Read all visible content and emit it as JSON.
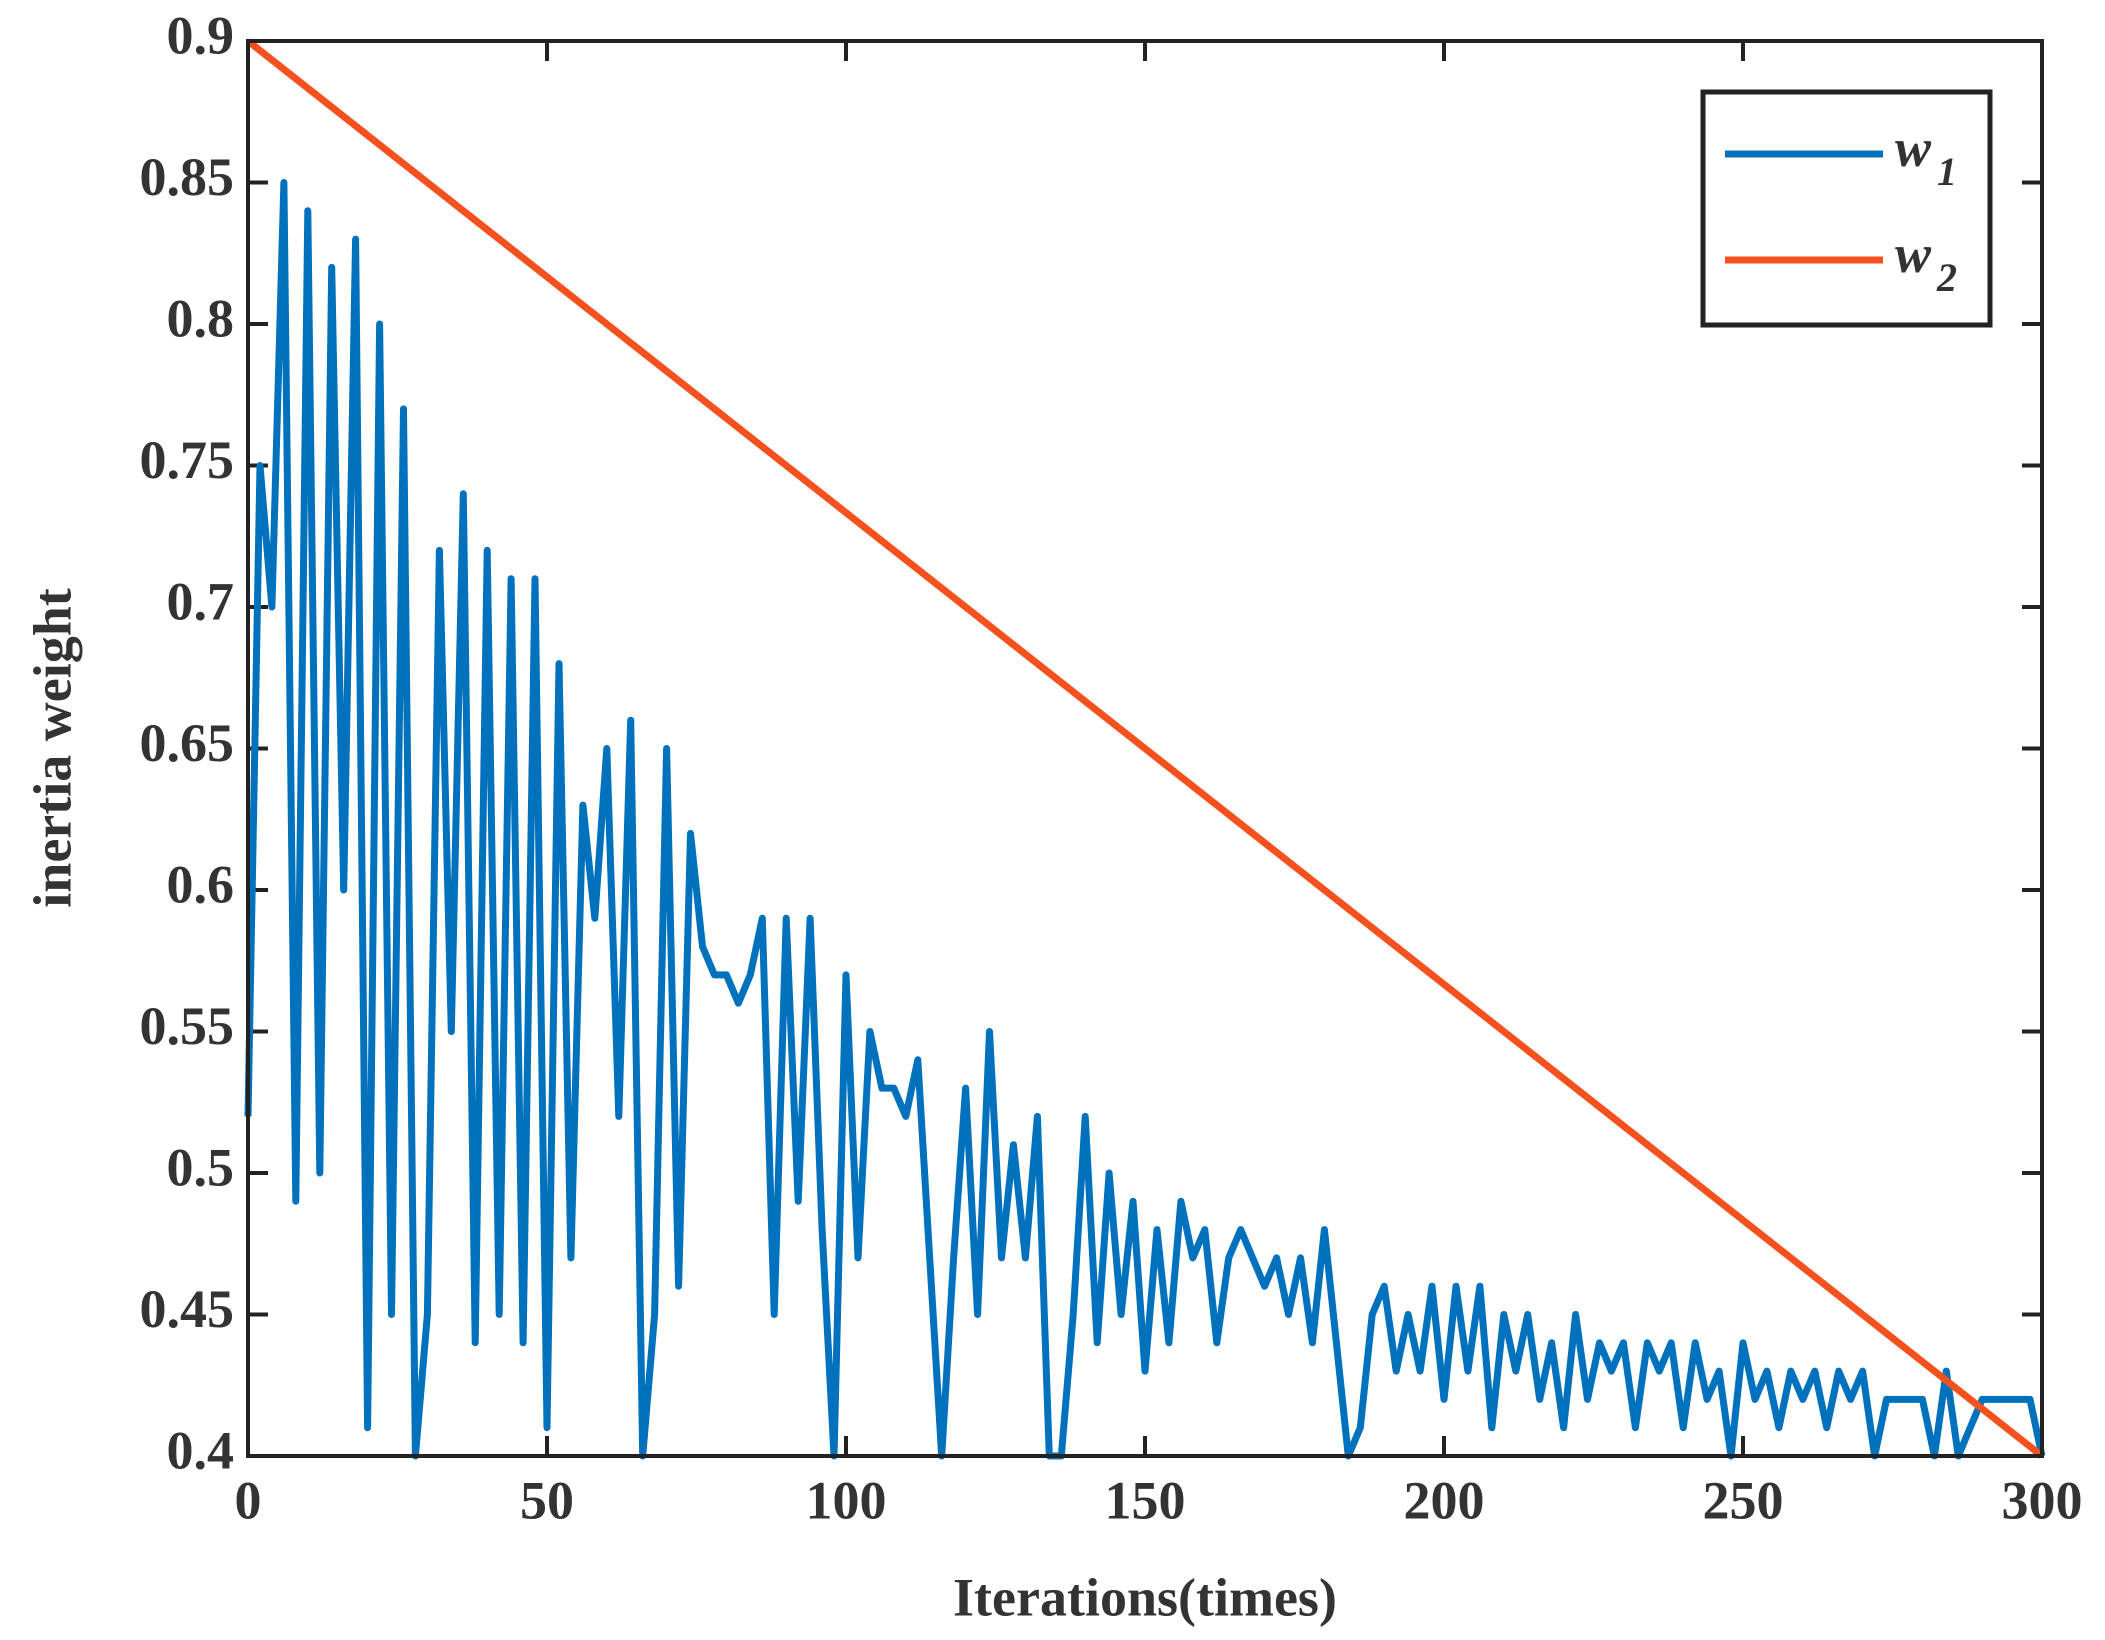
{
  "chart_data": {
    "type": "line",
    "xlabel": "Iterations(times)",
    "ylabel": "inertia weight",
    "xlim": [
      0,
      300
    ],
    "xticks": [
      0,
      50,
      100,
      150,
      200,
      250,
      300
    ],
    "ylim": [
      0.4,
      0.9
    ],
    "yticks": [
      0.4,
      0.45,
      0.5,
      0.55,
      0.6,
      0.65,
      0.7,
      0.75,
      0.8,
      0.85,
      0.9
    ],
    "legend": "upper right",
    "series": [
      {
        "name": "w1",
        "color": "#0072bd",
        "x": [
          0,
          2,
          4,
          6,
          8,
          10,
          12,
          14,
          16,
          18,
          20,
          22,
          24,
          26,
          28,
          30,
          32,
          34,
          36,
          38,
          40,
          42,
          44,
          46,
          48,
          50,
          52,
          54,
          56,
          58,
          60,
          62,
          64,
          66,
          68,
          70,
          72,
          74,
          76,
          78,
          80,
          82,
          84,
          86,
          88,
          90,
          92,
          94,
          96,
          98,
          100,
          102,
          104,
          106,
          108,
          110,
          112,
          114,
          116,
          118,
          120,
          122,
          124,
          126,
          128,
          130,
          132,
          134,
          136,
          138,
          140,
          142,
          144,
          146,
          148,
          150,
          152,
          154,
          156,
          158,
          160,
          162,
          164,
          166,
          168,
          170,
          172,
          174,
          176,
          178,
          180,
          182,
          184,
          186,
          188,
          190,
          192,
          194,
          196,
          198,
          200,
          202,
          204,
          206,
          208,
          210,
          212,
          214,
          216,
          218,
          220,
          222,
          224,
          226,
          228,
          230,
          232,
          234,
          236,
          238,
          240,
          242,
          244,
          246,
          248,
          250,
          252,
          254,
          256,
          258,
          260,
          262,
          264,
          266,
          268,
          270,
          272,
          274,
          276,
          278,
          280,
          282,
          284,
          286,
          288,
          290,
          292,
          294,
          296,
          298,
          300
        ],
        "values": [
          0.52,
          0.75,
          0.7,
          0.85,
          0.49,
          0.84,
          0.5,
          0.82,
          0.6,
          0.83,
          0.41,
          0.8,
          0.45,
          0.77,
          0.4,
          0.45,
          0.72,
          0.55,
          0.74,
          0.44,
          0.72,
          0.45,
          0.71,
          0.44,
          0.71,
          0.41,
          0.68,
          0.47,
          0.63,
          0.59,
          0.65,
          0.52,
          0.66,
          0.4,
          0.45,
          0.65,
          0.46,
          0.62,
          0.58,
          0.57,
          0.57,
          0.56,
          0.57,
          0.59,
          0.45,
          0.59,
          0.49,
          0.59,
          0.48,
          0.4,
          0.57,
          0.47,
          0.55,
          0.53,
          0.53,
          0.52,
          0.54,
          0.47,
          0.4,
          0.47,
          0.53,
          0.45,
          0.55,
          0.47,
          0.51,
          0.47,
          0.52,
          0.4,
          0.4,
          0.45,
          0.52,
          0.44,
          0.5,
          0.45,
          0.49,
          0.43,
          0.48,
          0.44,
          0.49,
          0.47,
          0.48,
          0.44,
          0.47,
          0.48,
          0.47,
          0.46,
          0.47,
          0.45,
          0.47,
          0.44,
          0.48,
          0.44,
          0.4,
          0.41,
          0.45,
          0.46,
          0.43,
          0.45,
          0.43,
          0.46,
          0.42,
          0.46,
          0.43,
          0.46,
          0.41,
          0.45,
          0.43,
          0.45,
          0.42,
          0.44,
          0.41,
          0.45,
          0.42,
          0.44,
          0.43,
          0.44,
          0.41,
          0.44,
          0.43,
          0.44,
          0.41,
          0.44,
          0.42,
          0.43,
          0.4,
          0.44,
          0.42,
          0.43,
          0.41,
          0.43,
          0.42,
          0.43,
          0.41,
          0.43,
          0.42,
          0.43,
          0.4,
          0.42,
          0.42,
          0.42,
          0.42,
          0.4,
          0.43,
          0.4,
          0.41,
          0.42,
          0.42,
          0.42,
          0.42,
          0.42,
          0.4
        ]
      },
      {
        "name": "w2",
        "color": "#f4511e",
        "x": [
          0,
          300
        ],
        "values": [
          0.9,
          0.4
        ]
      }
    ]
  }
}
